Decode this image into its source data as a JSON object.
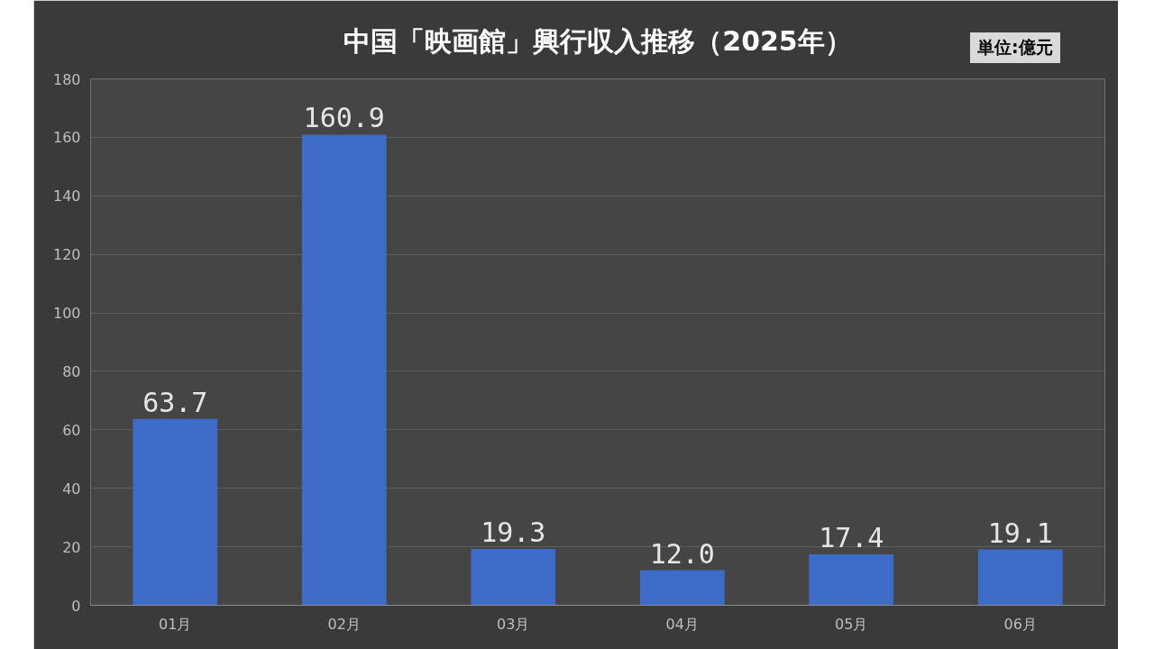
{
  "chart_data": {
    "type": "bar",
    "title": "中国「映画館」興行収入推移（2025年）",
    "annotations": [
      "単位:億元"
    ],
    "categories": [
      "01月",
      "02月",
      "03月",
      "04月",
      "05月",
      "06月"
    ],
    "values": [
      63.7,
      160.9,
      19.3,
      12.0,
      17.4,
      19.1
    ],
    "color": "#3d6cc8",
    "ylim": [
      0,
      180
    ],
    "yticks": [
      0,
      20,
      40,
      60,
      80,
      100,
      120,
      140,
      160,
      180
    ],
    "value_labels": [
      "63.7",
      "160.9",
      "19.3",
      "12.0",
      "17.4",
      "19.1"
    ],
    "grid": "y",
    "data_labels": true
  }
}
